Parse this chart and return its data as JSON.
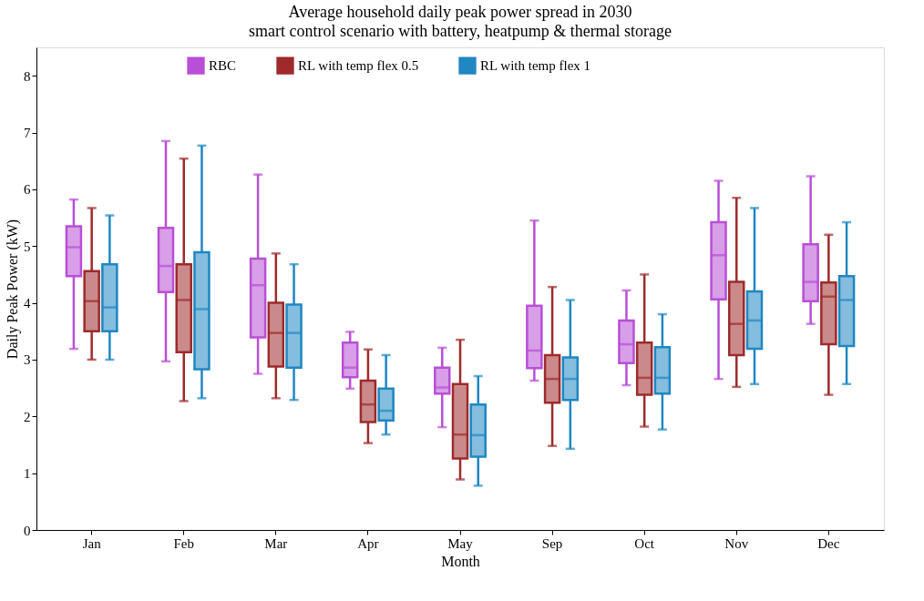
{
  "chart_data": {
    "type": "box",
    "title": "Average household daily peak power spread in 2030",
    "subtitle": "smart control scenario with battery, heatpump & thermal storage",
    "xlabel": "Month",
    "ylabel": "Daily Peak Power (kW)",
    "categories": [
      "Jan",
      "Feb",
      "Mar",
      "Apr",
      "May",
      "Sep",
      "Oct",
      "Nov",
      "Dec"
    ],
    "ylim": [
      0,
      8.5
    ],
    "yticks": [
      0,
      1,
      2,
      3,
      4,
      5,
      6,
      7,
      8
    ],
    "grid": false,
    "legend": "top",
    "series": [
      {
        "name": "RBC",
        "color": "#b84fd6",
        "boxes": [
          {
            "low": 3.19,
            "q1": 4.47,
            "median": 4.98,
            "q3": 5.35,
            "high": 5.82
          },
          {
            "low": 2.97,
            "q1": 4.19,
            "median": 4.65,
            "q3": 5.32,
            "high": 6.85
          },
          {
            "low": 2.75,
            "q1": 3.39,
            "median": 4.31,
            "q3": 4.78,
            "high": 6.26
          },
          {
            "low": 2.49,
            "q1": 2.69,
            "median": 2.86,
            "q3": 3.3,
            "high": 3.49
          },
          {
            "low": 1.81,
            "q1": 2.4,
            "median": 2.51,
            "q3": 2.86,
            "high": 3.21
          },
          {
            "low": 2.63,
            "q1": 2.85,
            "median": 3.16,
            "q3": 3.95,
            "high": 5.45
          },
          {
            "low": 2.55,
            "q1": 2.94,
            "median": 3.27,
            "q3": 3.69,
            "high": 4.22
          },
          {
            "low": 2.66,
            "q1": 4.06,
            "median": 4.84,
            "q3": 5.42,
            "high": 6.15
          },
          {
            "low": 3.63,
            "q1": 4.03,
            "median": 4.37,
            "q3": 5.03,
            "high": 6.23
          }
        ]
      },
      {
        "name": "RL with temp flex 0.5",
        "color": "#9e2a2b",
        "boxes": [
          {
            "low": 3.0,
            "q1": 3.5,
            "median": 4.03,
            "q3": 4.56,
            "high": 5.67
          },
          {
            "low": 2.27,
            "q1": 3.13,
            "median": 4.05,
            "q3": 4.68,
            "high": 6.54
          },
          {
            "low": 2.32,
            "q1": 2.88,
            "median": 3.47,
            "q3": 4.0,
            "high": 4.87
          },
          {
            "low": 1.53,
            "q1": 1.9,
            "median": 2.21,
            "q3": 2.63,
            "high": 3.18
          },
          {
            "low": 0.89,
            "q1": 1.26,
            "median": 1.68,
            "q3": 2.57,
            "high": 3.35
          },
          {
            "low": 1.48,
            "q1": 2.24,
            "median": 2.66,
            "q3": 3.08,
            "high": 4.28
          },
          {
            "low": 1.82,
            "q1": 2.38,
            "median": 2.68,
            "q3": 3.3,
            "high": 4.5
          },
          {
            "low": 2.52,
            "q1": 3.08,
            "median": 3.63,
            "q3": 4.37,
            "high": 5.85
          },
          {
            "low": 2.38,
            "q1": 3.27,
            "median": 4.11,
            "q3": 4.36,
            "high": 5.2
          }
        ]
      },
      {
        "name": "RL with temp flex 1",
        "color": "#1f87c2",
        "boxes": [
          {
            "low": 3.0,
            "q1": 3.5,
            "median": 3.92,
            "q3": 4.68,
            "high": 5.54
          },
          {
            "low": 2.32,
            "q1": 2.83,
            "median": 3.89,
            "q3": 4.89,
            "high": 6.77
          },
          {
            "low": 2.29,
            "q1": 2.86,
            "median": 3.47,
            "q3": 3.97,
            "high": 4.68
          },
          {
            "low": 1.68,
            "q1": 1.93,
            "median": 2.1,
            "q3": 2.49,
            "high": 3.08
          },
          {
            "low": 0.78,
            "q1": 1.29,
            "median": 1.67,
            "q3": 2.21,
            "high": 2.71
          },
          {
            "low": 1.43,
            "q1": 2.29,
            "median": 2.66,
            "q3": 3.04,
            "high": 4.05
          },
          {
            "low": 1.77,
            "q1": 2.4,
            "median": 2.68,
            "q3": 3.22,
            "high": 3.8
          },
          {
            "low": 2.57,
            "q1": 3.19,
            "median": 3.69,
            "q3": 4.2,
            "high": 5.67
          },
          {
            "low": 2.57,
            "q1": 3.24,
            "median": 4.05,
            "q3": 4.47,
            "high": 5.42
          }
        ]
      }
    ]
  }
}
